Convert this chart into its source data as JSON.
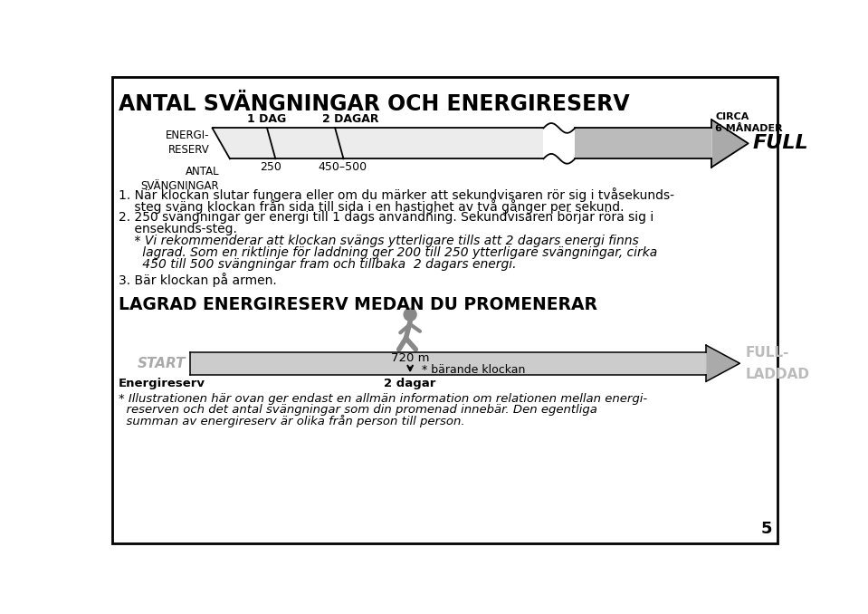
{
  "title": "ANTAL SVÄNGNINGAR OCH ENERGIRESERV",
  "background_color": "#ffffff",
  "border_color": "#000000",
  "arrow1_label_top": "ENERGI-\nRESERV",
  "arrow1_label_bottom": "ANTAL\nSVÄNGNINGAR",
  "arrow1_marker1": "250",
  "arrow1_marker2": "450–500",
  "arrow1_day1": "1 DAG",
  "arrow1_day2": "2 DAGAR",
  "arrow1_circa": "CIRCA\n6 MÅNADER",
  "arrow1_full": "FULL",
  "text1": "1. När klockan slutar fungera eller om du märker att sekundvisaren rör sig i tvåsekunds-",
  "text1b": "    steg sväng klockan från sida till sida i en hastighet av två gånger per sekund.",
  "text2": "2. 250 svängningar ger energi till 1 dags användning. Sekundvisaren börjar röra sig i",
  "text2b": "    ensekunds-steg.",
  "text3": "    * Vi rekommenderar att klockan svängs ytterligare tills att 2 dagars energi finns",
  "text3b": "      lagrad. Som en riktlinje för laddning ger 200 till 250 ytterligare svängningar, cirka",
  "text3c": "      450 till 500 svängningar fram och tillbaka  2 dagars energi.",
  "text4": "3. Bär klockan på armen.",
  "title2": "LAGRAD ENERGIRESERV MEDAN DU PROMENERAR",
  "arrow2_start": "START",
  "arrow2_full1": "FULL-",
  "arrow2_full2": "LADDAD",
  "arrow2_dist": "720 m",
  "arrow2_days": "2 dagar",
  "arrow2_bear": "* bärande klockan",
  "arrow2_energy": "Energireserv",
  "footnote1": "* Illustrationen här ovan ger endast en allmän information om relationen mellan energi-",
  "footnote2": "  reserven och det antal svängningar som din promenad innebär. Den egentliga",
  "footnote3": "  summan av energireserv är olika från person till person.",
  "page_num": "5"
}
